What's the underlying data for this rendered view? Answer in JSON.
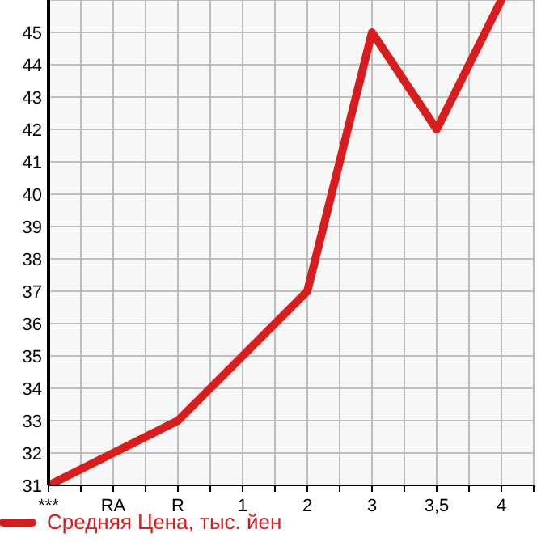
{
  "chart_data": {
    "type": "line",
    "categories": [
      "***",
      "RA",
      "R",
      "1",
      "2",
      "3",
      "3,5",
      "4"
    ],
    "series": [
      {
        "name": "Средняя Цена, тыс. йен",
        "color": "#d91c1c",
        "values": [
          31,
          32,
          33,
          35,
          37,
          45,
          42,
          46
        ]
      }
    ],
    "ylim": [
      31,
      46
    ],
    "yticks": [
      31,
      32,
      33,
      34,
      35,
      36,
      37,
      38,
      39,
      40,
      41,
      42,
      43,
      44,
      45
    ],
    "grid": true,
    "legend": "bottom",
    "marker": "none",
    "line_style": "solid"
  }
}
